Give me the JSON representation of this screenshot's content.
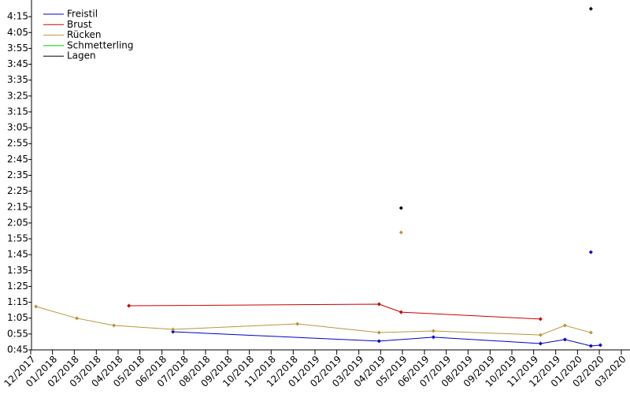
{
  "chart_data": {
    "type": "line",
    "xlim": [
      2017.92,
      2020.2
    ],
    "ylim": [
      45,
      265.5
    ],
    "xticks": [
      {
        "value": 2017.917,
        "label": "12/2017"
      },
      {
        "value": 2018,
        "label": "01/2018"
      },
      {
        "value": 2018.083,
        "label": "02/2018"
      },
      {
        "value": 2018.167,
        "label": "03/2018"
      },
      {
        "value": 2018.25,
        "label": "04/2018"
      },
      {
        "value": 2018.333,
        "label": "05/2018"
      },
      {
        "value": 2018.417,
        "label": "06/2018"
      },
      {
        "value": 2018.5,
        "label": "07/2018"
      },
      {
        "value": 2018.583,
        "label": "08/2018"
      },
      {
        "value": 2018.667,
        "label": "09/2018"
      },
      {
        "value": 2018.75,
        "label": "10/2018"
      },
      {
        "value": 2018.833,
        "label": "11/2018"
      },
      {
        "value": 2018.917,
        "label": "12/2018"
      },
      {
        "value": 2019,
        "label": "01/2019"
      },
      {
        "value": 2019.083,
        "label": "02/2019"
      },
      {
        "value": 2019.167,
        "label": "03/2019"
      },
      {
        "value": 2019.25,
        "label": "04/2019"
      },
      {
        "value": 2019.333,
        "label": "05/2019"
      },
      {
        "value": 2019.417,
        "label": "06/2019"
      },
      {
        "value": 2019.5,
        "label": "07/2019"
      },
      {
        "value": 2019.583,
        "label": "08/2019"
      },
      {
        "value": 2019.667,
        "label": "09/2019"
      },
      {
        "value": 2019.75,
        "label": "10/2019"
      },
      {
        "value": 2019.833,
        "label": "11/2019"
      },
      {
        "value": 2019.917,
        "label": "12/2019"
      },
      {
        "value": 2020,
        "label": "01/2020"
      },
      {
        "value": 2020.083,
        "label": "02/2020"
      },
      {
        "value": 2020.167,
        "label": "03/2020"
      }
    ],
    "yticks": [
      {
        "value": 45,
        "label": "0:45"
      },
      {
        "value": 55,
        "label": "0:55"
      },
      {
        "value": 65,
        "label": "1:05"
      },
      {
        "value": 75,
        "label": "1:15"
      },
      {
        "value": 85,
        "label": "1:25"
      },
      {
        "value": 95,
        "label": "1:35"
      },
      {
        "value": 105,
        "label": "1:45"
      },
      {
        "value": 115,
        "label": "1:55"
      },
      {
        "value": 125,
        "label": "2:05"
      },
      {
        "value": 135,
        "label": "2:15"
      },
      {
        "value": 145,
        "label": "2:25"
      },
      {
        "value": 155,
        "label": "2:35"
      },
      {
        "value": 165,
        "label": "2:45"
      },
      {
        "value": 175,
        "label": "2:55"
      },
      {
        "value": 185,
        "label": "3:05"
      },
      {
        "value": 195,
        "label": "3:15"
      },
      {
        "value": 205,
        "label": "3:25"
      },
      {
        "value": 215,
        "label": "3:35"
      },
      {
        "value": 225,
        "label": "3:45"
      },
      {
        "value": 235,
        "label": "3:55"
      },
      {
        "value": 245,
        "label": "4:05"
      },
      {
        "value": 255,
        "label": "4:15"
      }
    ],
    "legend": "upper left",
    "series": [
      {
        "name": "Freistil",
        "color": "#0000cc",
        "x": [
          2018.459,
          2019.244,
          2019.451,
          2019.859,
          2019.952,
          2020.051,
          2020.087,
          2020.07,
          2020.051
        ],
        "values": [
          56.4,
          50.5,
          53,
          49,
          51.5,
          47.5,
          48,
          null,
          106.6
        ]
      },
      {
        "name": "Brust",
        "color": "#cc0000",
        "x": [
          2018.291,
          2019.244,
          2019.328,
          2019.859
        ],
        "values": [
          72.8,
          73.8,
          68.8,
          64.4
        ]
      },
      {
        "name": "Rücken",
        "color": "#b8963c",
        "x": [
          2017.937,
          2018.093,
          2018.234,
          2018.459,
          2018.933,
          2019.244,
          2019.451,
          2019.859,
          2019.952,
          2020.051,
          2020.0,
          2019.328
        ],
        "values": [
          72.3,
          64.9,
          60.4,
          57.9,
          61.4,
          55.9,
          56.9,
          54.4,
          60.4,
          55.9,
          null,
          119
        ]
      },
      {
        "name": "Schmetterling",
        "color": "#00cc00",
        "x": [],
        "values": []
      },
      {
        "name": "Lagen",
        "color": "#000000",
        "x": [
          2019.328,
          2019.7,
          2020.051
        ],
        "values": [
          134.4,
          null,
          260
        ]
      }
    ]
  }
}
